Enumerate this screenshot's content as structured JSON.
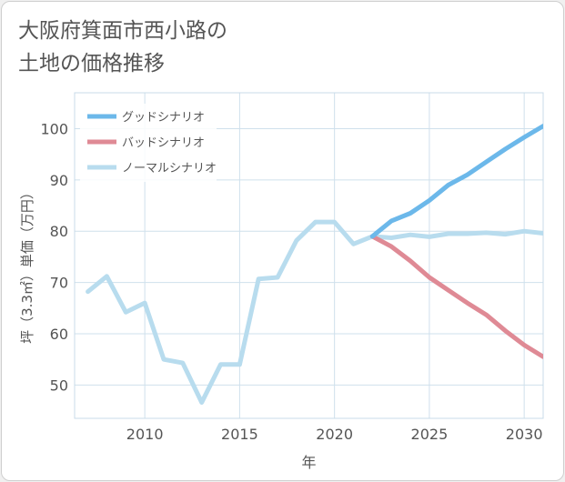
{
  "title": {
    "line1": "大阪府箕面市西小路の",
    "line2": "土地の価格推移"
  },
  "chart_data": {
    "type": "line",
    "title": "大阪府箕面市西小路の土地の価格推移",
    "xlabel": "年",
    "ylabel": "坪（3.3㎡）単価（万円）",
    "xlim": [
      2006.3,
      2031
    ],
    "ylim": [
      43.5,
      107
    ],
    "xticks": [
      2010,
      2015,
      2020,
      2025,
      2030
    ],
    "yticks": [
      50,
      60,
      70,
      80,
      90,
      100
    ],
    "grid": true,
    "legend_position": "top-left",
    "series": [
      {
        "name": "グッドシナリオ",
        "color": "#6cb8ea",
        "x": [
          2022,
          2023,
          2024,
          2025,
          2026,
          2027,
          2028,
          2029,
          2030,
          2031
        ],
        "values": [
          79.0,
          82.0,
          83.5,
          86.0,
          89.0,
          91.0,
          93.5,
          96.0,
          98.3,
          100.5
        ]
      },
      {
        "name": "バッドシナリオ",
        "color": "#df8a95",
        "x": [
          2022,
          2023,
          2024,
          2025,
          2026,
          2027,
          2028,
          2029,
          2030,
          2031
        ],
        "values": [
          79.0,
          77.0,
          74.2,
          71.0,
          68.5,
          66.0,
          63.7,
          60.6,
          57.8,
          55.5
        ]
      },
      {
        "name": "ノーマルシナリオ",
        "color": "#b8dcee",
        "x": [
          2007,
          2008,
          2009,
          2010,
          2011,
          2012,
          2013,
          2014,
          2015,
          2016,
          2017,
          2018,
          2019,
          2020,
          2021,
          2022,
          2023,
          2024,
          2025,
          2026,
          2027,
          2028,
          2029,
          2030,
          2031
        ],
        "values": [
          68.2,
          71.2,
          64.2,
          66.0,
          55.0,
          54.3,
          46.6,
          54.0,
          54.0,
          70.7,
          71.0,
          78.2,
          81.8,
          81.8,
          77.5,
          79.0,
          78.7,
          79.3,
          78.9,
          79.5,
          79.5,
          79.7,
          79.4,
          80.0,
          79.6
        ]
      }
    ]
  }
}
